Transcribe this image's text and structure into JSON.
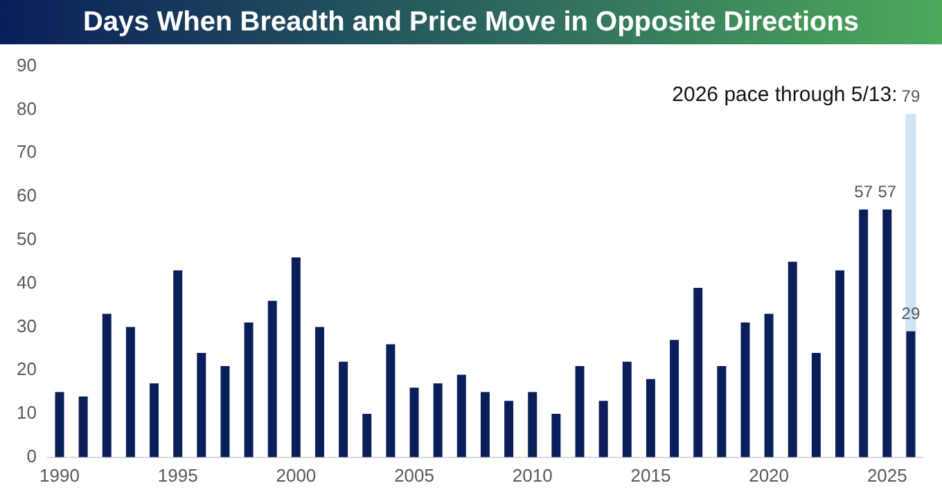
{
  "chart_data": {
    "type": "bar",
    "title": "Days When Breadth and Price Move in Opposite Directions",
    "categories": [
      "1990",
      null,
      null,
      null,
      null,
      "1995",
      null,
      null,
      null,
      null,
      "2000",
      null,
      null,
      null,
      null,
      "2005",
      null,
      null,
      null,
      null,
      "2010",
      null,
      null,
      null,
      null,
      "2015",
      null,
      null,
      null,
      null,
      "2020",
      null,
      null,
      null,
      null,
      "2025",
      null
    ],
    "series": [
      {
        "name": "2026 pace through 5/13:",
        "color": "#cfe5f5",
        "values": [
          null,
          null,
          null,
          null,
          null,
          null,
          null,
          null,
          null,
          null,
          null,
          null,
          null,
          null,
          null,
          null,
          null,
          null,
          null,
          null,
          null,
          null,
          null,
          null,
          null,
          null,
          null,
          null,
          null,
          null,
          null,
          null,
          null,
          null,
          null,
          null,
          79
        ],
        "value_labels": [
          null,
          null,
          null,
          null,
          null,
          null,
          null,
          null,
          null,
          null,
          null,
          null,
          null,
          null,
          null,
          null,
          null,
          null,
          null,
          null,
          null,
          null,
          null,
          null,
          null,
          null,
          null,
          null,
          null,
          null,
          null,
          null,
          null,
          null,
          null,
          null,
          "79"
        ]
      },
      {
        "color": "#0a1e5a",
        "values": [
          15,
          14,
          33,
          30,
          17,
          43,
          24,
          21,
          31,
          36,
          46,
          30,
          22,
          10,
          26,
          16,
          17,
          19,
          15,
          13,
          15,
          10,
          21,
          13,
          22,
          18,
          27,
          39,
          21,
          31,
          33,
          45,
          24,
          43,
          57,
          57,
          29
        ],
        "value_labels": [
          null,
          null,
          null,
          null,
          null,
          null,
          null,
          null,
          null,
          null,
          null,
          null,
          null,
          null,
          null,
          null,
          null,
          null,
          null,
          null,
          null,
          null,
          null,
          null,
          null,
          null,
          null,
          null,
          null,
          null,
          null,
          null,
          null,
          null,
          "57",
          "57",
          "29"
        ]
      }
    ],
    "ylim": [
      0,
      90
    ],
    "yticks": [
      0,
      10,
      20,
      30,
      40,
      50,
      60,
      70,
      80,
      90
    ],
    "grid": false,
    "legend": false
  }
}
